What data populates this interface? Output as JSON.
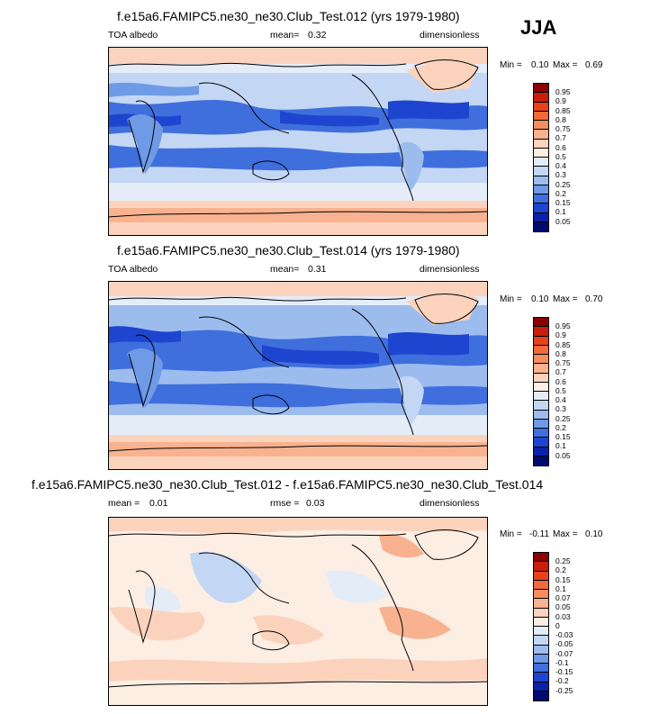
{
  "season": "JJA",
  "panels": [
    {
      "title": "f.e15a6.FAMIPC5.ne30_ne30.Club_Test.012 (yrs 1979-1980)",
      "left_label": "TOA albedo",
      "mean_label": "mean=",
      "mean_value": "0.32",
      "units": "dimensionless",
      "min_label": "Min =",
      "min_value": "0.10",
      "max_label": "Max =",
      "max_value": "0.69",
      "colorbar_levels": [
        "0.95",
        "0.9",
        "0.85",
        "0.8",
        "0.75",
        "0.7",
        "0.6",
        "0.5",
        "0.4",
        "0.3",
        "0.25",
        "0.2",
        "0.15",
        "0.1",
        "0.05"
      ],
      "colorbar_colors": [
        "#8b0000",
        "#c81e0a",
        "#e6431c",
        "#f06a3a",
        "#f58d5e",
        "#f9b28f",
        "#fbd3bd",
        "#fdeee4",
        "#e4ecf8",
        "#c3d6f4",
        "#9dbcee",
        "#6f9ae6",
        "#3f6fdc",
        "#1e45cf",
        "#0a22a8",
        "#020a70"
      ]
    },
    {
      "title": "f.e15a6.FAMIPC5.ne30_ne30.Club_Test.014 (yrs 1979-1980)",
      "left_label": "TOA albedo",
      "mean_label": "mean=",
      "mean_value": "0.31",
      "units": "dimensionless",
      "min_label": "Min =",
      "min_value": "0.10",
      "max_label": "Max =",
      "max_value": "0.70",
      "colorbar_levels": [
        "0.95",
        "0.9",
        "0.85",
        "0.8",
        "0.75",
        "0.7",
        "0.6",
        "0.5",
        "0.4",
        "0.3",
        "0.25",
        "0.2",
        "0.15",
        "0.1",
        "0.05"
      ],
      "colorbar_colors": [
        "#8b0000",
        "#c81e0a",
        "#e6431c",
        "#f06a3a",
        "#f58d5e",
        "#f9b28f",
        "#fbd3bd",
        "#fdeee4",
        "#e4ecf8",
        "#c3d6f4",
        "#9dbcee",
        "#6f9ae6",
        "#3f6fdc",
        "#1e45cf",
        "#0a22a8",
        "#020a70"
      ]
    },
    {
      "title": "f.e15a6.FAMIPC5.ne30_ne30.Club_Test.012 - f.e15a6.FAMIPC5.ne30_ne30.Club_Test.014",
      "left_label": "mean =",
      "mean_label": "rmse =",
      "left_value": "0.01",
      "mean_value": "0.03",
      "units": "dimensionless",
      "min_label": "Min =",
      "min_value": "-0.11",
      "max_label": "Max =",
      "max_value": "0.10",
      "colorbar_levels": [
        "0.25",
        "0.2",
        "0.15",
        "0.1",
        "0.07",
        "0.05",
        "0.03",
        "0",
        "-0.03",
        "-0.05",
        "-0.07",
        "-0.1",
        "-0.15",
        "-0.2",
        "-0.25"
      ],
      "colorbar_colors": [
        "#8b0000",
        "#c81e0a",
        "#e6431c",
        "#f06a3a",
        "#f58d5e",
        "#f9b28f",
        "#fbd3bd",
        "#fdeee4",
        "#e4ecf8",
        "#c3d6f4",
        "#9dbcee",
        "#6f9ae6",
        "#3f6fdc",
        "#1e45cf",
        "#0a22a8",
        "#020a70"
      ]
    }
  ],
  "chart_data": [
    {
      "type": "heatmap",
      "title": "f.e15a6.FAMIPC5.ne30_ne30.Club_Test.012 (yrs 1979-1980)",
      "mean": 0.32,
      "min": 0.1,
      "max": 0.69,
      "levels": [
        0.05,
        0.1,
        0.15,
        0.2,
        0.25,
        0.3,
        0.4,
        0.5,
        0.6,
        0.7,
        0.75,
        0.8,
        0.85,
        0.9,
        0.95
      ]
    },
    {
      "type": "heatmap",
      "title": "f.e15a6.FAMIPC5.ne30_ne30.Club_Test.014 (yrs 1979-1980)",
      "mean": 0.31,
      "min": 0.1,
      "max": 0.7,
      "levels": [
        0.05,
        0.1,
        0.15,
        0.2,
        0.25,
        0.3,
        0.4,
        0.5,
        0.6,
        0.7,
        0.75,
        0.8,
        0.85,
        0.9,
        0.95
      ]
    },
    {
      "type": "heatmap",
      "title": "f.e15a6.FAMIPC5.ne30_ne30.Club_Test.012 - f.e15a6.FAMIPC5.ne30_ne30.Club_Test.014",
      "mean": 0.01,
      "rmse": 0.03,
      "min": -0.11,
      "max": 0.1,
      "levels": [
        -0.25,
        -0.2,
        -0.15,
        -0.1,
        -0.07,
        -0.05,
        -0.03,
        0,
        0.03,
        0.05,
        0.07,
        0.1,
        0.15,
        0.2,
        0.25
      ]
    }
  ]
}
